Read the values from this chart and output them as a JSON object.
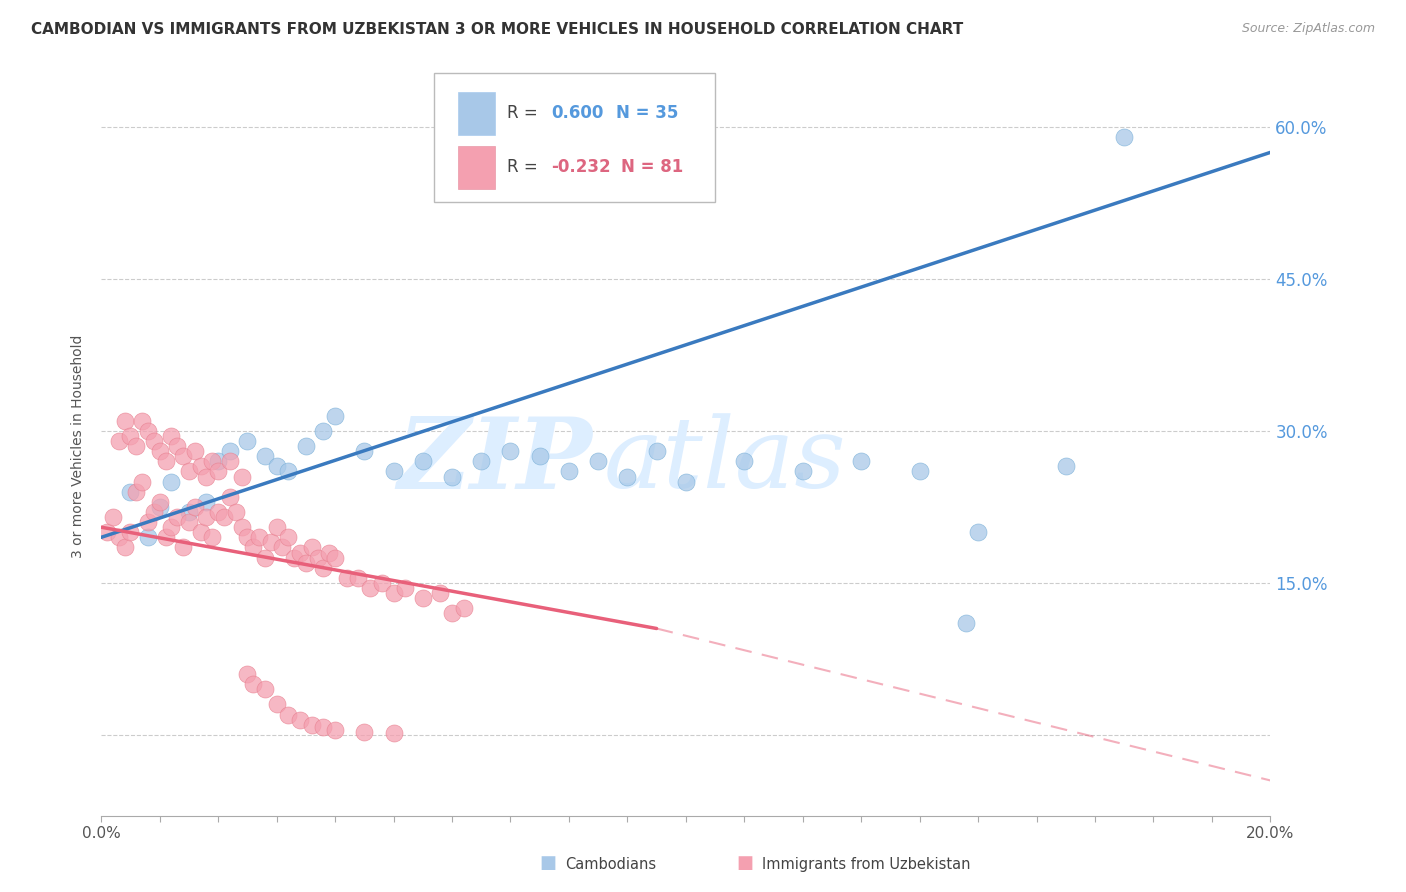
{
  "title": "CAMBODIAN VS IMMIGRANTS FROM UZBEKISTAN 3 OR MORE VEHICLES IN HOUSEHOLD CORRELATION CHART",
  "source": "Source: ZipAtlas.com",
  "ylabel": "3 or more Vehicles in Household",
  "x_min": 0.0,
  "x_max": 0.2,
  "y_min": -0.08,
  "y_max": 0.65,
  "yticks": [
    0.0,
    0.15,
    0.3,
    0.45,
    0.6
  ],
  "ytick_labels": [
    "",
    "15.0%",
    "30.0%",
    "45.0%",
    "60.0%"
  ],
  "blue_R": 0.6,
  "blue_N": 35,
  "pink_R": -0.232,
  "pink_N": 81,
  "blue_color": "#a8c8e8",
  "pink_color": "#f4a0b0",
  "blue_line_color": "#3a7abf",
  "pink_line_color": "#e8607a",
  "watermark_color": "#ddeeff",
  "grid_color": "#cccccc",
  "title_fontsize": 11,
  "axis_label_fontsize": 10,
  "tick_fontsize": 11,
  "blue_scatter_x": [
    0.005,
    0.008,
    0.01,
    0.012,
    0.015,
    0.018,
    0.02,
    0.022,
    0.025,
    0.028,
    0.03,
    0.032,
    0.035,
    0.038,
    0.04,
    0.045,
    0.05,
    0.055,
    0.06,
    0.065,
    0.07,
    0.075,
    0.08,
    0.085,
    0.09,
    0.095,
    0.1,
    0.11,
    0.12,
    0.13,
    0.14,
    0.15,
    0.165,
    0.175,
    0.148
  ],
  "blue_scatter_y": [
    0.24,
    0.195,
    0.225,
    0.25,
    0.22,
    0.23,
    0.27,
    0.28,
    0.29,
    0.275,
    0.265,
    0.26,
    0.285,
    0.3,
    0.315,
    0.28,
    0.26,
    0.27,
    0.255,
    0.27,
    0.28,
    0.275,
    0.26,
    0.27,
    0.255,
    0.28,
    0.25,
    0.27,
    0.26,
    0.27,
    0.26,
    0.2,
    0.265,
    0.59,
    0.11
  ],
  "pink_scatter_x": [
    0.001,
    0.002,
    0.003,
    0.004,
    0.005,
    0.006,
    0.007,
    0.008,
    0.009,
    0.01,
    0.011,
    0.012,
    0.013,
    0.014,
    0.015,
    0.016,
    0.017,
    0.018,
    0.019,
    0.02,
    0.021,
    0.022,
    0.023,
    0.024,
    0.025,
    0.026,
    0.027,
    0.028,
    0.029,
    0.03,
    0.031,
    0.032,
    0.033,
    0.034,
    0.035,
    0.036,
    0.037,
    0.038,
    0.039,
    0.04,
    0.042,
    0.044,
    0.046,
    0.048,
    0.05,
    0.052,
    0.055,
    0.058,
    0.06,
    0.062,
    0.003,
    0.004,
    0.005,
    0.006,
    0.007,
    0.008,
    0.009,
    0.01,
    0.011,
    0.012,
    0.013,
    0.014,
    0.015,
    0.016,
    0.017,
    0.018,
    0.019,
    0.02,
    0.022,
    0.024,
    0.025,
    0.026,
    0.028,
    0.03,
    0.032,
    0.034,
    0.036,
    0.038,
    0.04,
    0.045,
    0.05
  ],
  "pink_scatter_y": [
    0.2,
    0.215,
    0.195,
    0.185,
    0.2,
    0.24,
    0.25,
    0.21,
    0.22,
    0.23,
    0.195,
    0.205,
    0.215,
    0.185,
    0.21,
    0.225,
    0.2,
    0.215,
    0.195,
    0.22,
    0.215,
    0.235,
    0.22,
    0.205,
    0.195,
    0.185,
    0.195,
    0.175,
    0.19,
    0.205,
    0.185,
    0.195,
    0.175,
    0.18,
    0.17,
    0.185,
    0.175,
    0.165,
    0.18,
    0.175,
    0.155,
    0.155,
    0.145,
    0.15,
    0.14,
    0.145,
    0.135,
    0.14,
    0.12,
    0.125,
    0.29,
    0.31,
    0.295,
    0.285,
    0.31,
    0.3,
    0.29,
    0.28,
    0.27,
    0.295,
    0.285,
    0.275,
    0.26,
    0.28,
    0.265,
    0.255,
    0.27,
    0.26,
    0.27,
    0.255,
    0.06,
    0.05,
    0.045,
    0.03,
    0.02,
    0.015,
    0.01,
    0.008,
    0.005,
    0.003,
    0.002
  ]
}
